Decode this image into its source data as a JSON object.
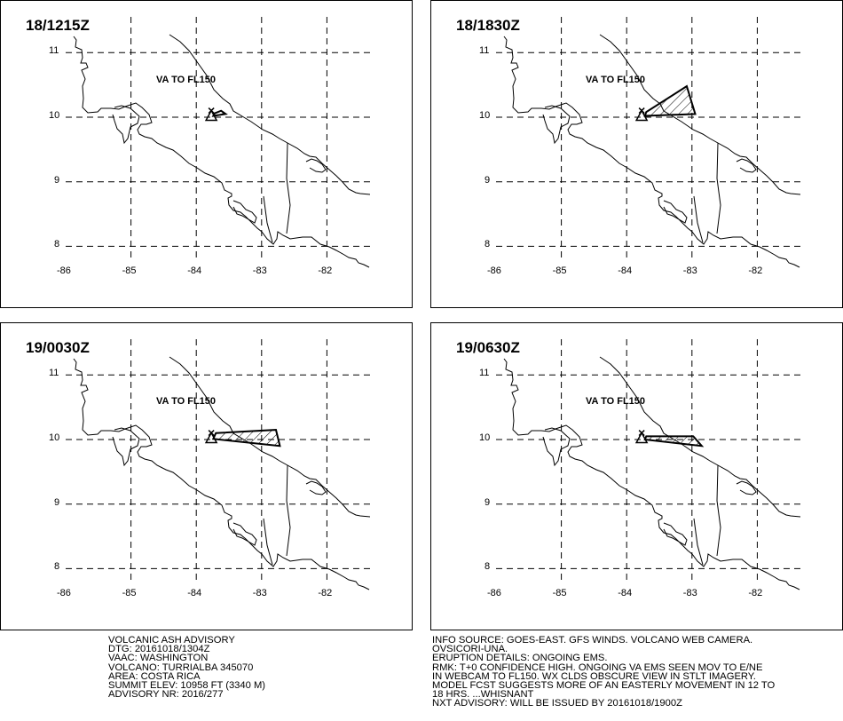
{
  "panels": [
    {
      "time": "18/1215Z",
      "label": "VA TO FL150",
      "ash_polygon": [
        [
          -83.74,
          10.02
        ],
        [
          -83.55,
          10.05
        ],
        [
          -83.62,
          10.1
        ],
        [
          -83.72,
          10.06
        ]
      ]
    },
    {
      "time": "18/1830Z",
      "label": "VA TO FL150",
      "ash_polygon": [
        [
          -83.72,
          10.02
        ],
        [
          -82.95,
          10.05
        ],
        [
          -83.08,
          10.48
        ],
        [
          -83.7,
          10.08
        ]
      ]
    },
    {
      "time": "19/0030Z",
      "label": "VA TO FL150",
      "ash_polygon": [
        [
          -83.74,
          10.01
        ],
        [
          -82.72,
          9.9
        ],
        [
          -82.78,
          10.15
        ],
        [
          -83.7,
          10.1
        ]
      ]
    },
    {
      "time": "19/0630Z",
      "label": "VA TO FL150",
      "ash_polygon": [
        [
          -83.72,
          10.0
        ],
        [
          -82.85,
          9.9
        ],
        [
          -82.98,
          10.05
        ],
        [
          -83.7,
          10.05
        ]
      ]
    }
  ],
  "map": {
    "volcano": {
      "name": "TURRIALBA",
      "lon": -83.77,
      "lat": 10.02
    },
    "lat_ticks": [
      "11",
      "10",
      "9",
      "8"
    ],
    "lon_ticks": [
      "-86",
      "-85",
      "-84",
      "-83",
      "-82"
    ],
    "colors": {
      "ink": "#000000",
      "background": "#ffffff"
    }
  },
  "advisory_left": [
    "VOLCANIC ASH ADVISORY",
    "DTG: 20161018/1304Z",
    "VAAC: WASHINGTON",
    "VOLCANO: TURRIALBA 345070",
    "AREA: COSTA RICA",
    "SUMMIT ELEV: 10958 FT (3340 M)",
    "ADVISORY NR: 2016/277"
  ],
  "advisory_right": [
    "INFO SOURCE: GOES-EAST. GFS WINDS. VOLCANO WEB CAMERA.",
    "OVSICORI-UNA.",
    "ERUPTION DETAILS: ONGOING EMS.",
    "RMK: T+0 CONFIDENCE HIGH. ONGOING VA EMS SEEN MOV TO E/NE",
    "IN WEBCAM TO FL150. WX CLDS OBSCURE VIEW IN STLT IMAGERY.",
    "MODEL FCST SUGGESTS MORE OF AN EASTERLY MOVEMENT IN 12 TO",
    "18 HRS. ...WHISNANT",
    "NXT ADVISORY: WILL BE ISSUED BY 20161018/1900Z"
  ]
}
